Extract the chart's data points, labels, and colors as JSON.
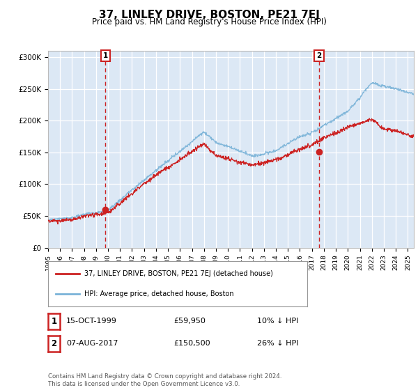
{
  "title": "37, LINLEY DRIVE, BOSTON, PE21 7EJ",
  "subtitle": "Price paid vs. HM Land Registry's House Price Index (HPI)",
  "bg_color": "#f0f4ff",
  "plot_bg_color": "#dce8f5",
  "ylim": [
    0,
    310000
  ],
  "yticks": [
    0,
    50000,
    100000,
    150000,
    200000,
    250000,
    300000
  ],
  "ytick_labels": [
    "£0",
    "£50K",
    "£100K",
    "£150K",
    "£200K",
    "£250K",
    "£300K"
  ],
  "sale1_date": 1999.79,
  "sale1_price": 59950,
  "sale2_date": 2017.59,
  "sale2_price": 150500,
  "hpi_color": "#7ab3d8",
  "price_color": "#cc2222",
  "vline_color": "#cc2222",
  "legend_label1": "37, LINLEY DRIVE, BOSTON, PE21 7EJ (detached house)",
  "legend_label2": "HPI: Average price, detached house, Boston",
  "table_row1": [
    "1",
    "15-OCT-1999",
    "£59,950",
    "10% ↓ HPI"
  ],
  "table_row2": [
    "2",
    "07-AUG-2017",
    "£150,500",
    "26% ↓ HPI"
  ],
  "footnote": "Contains HM Land Registry data © Crown copyright and database right 2024.\nThis data is licensed under the Open Government Licence v3.0.",
  "xstart": 1995.0,
  "xend": 2025.5
}
